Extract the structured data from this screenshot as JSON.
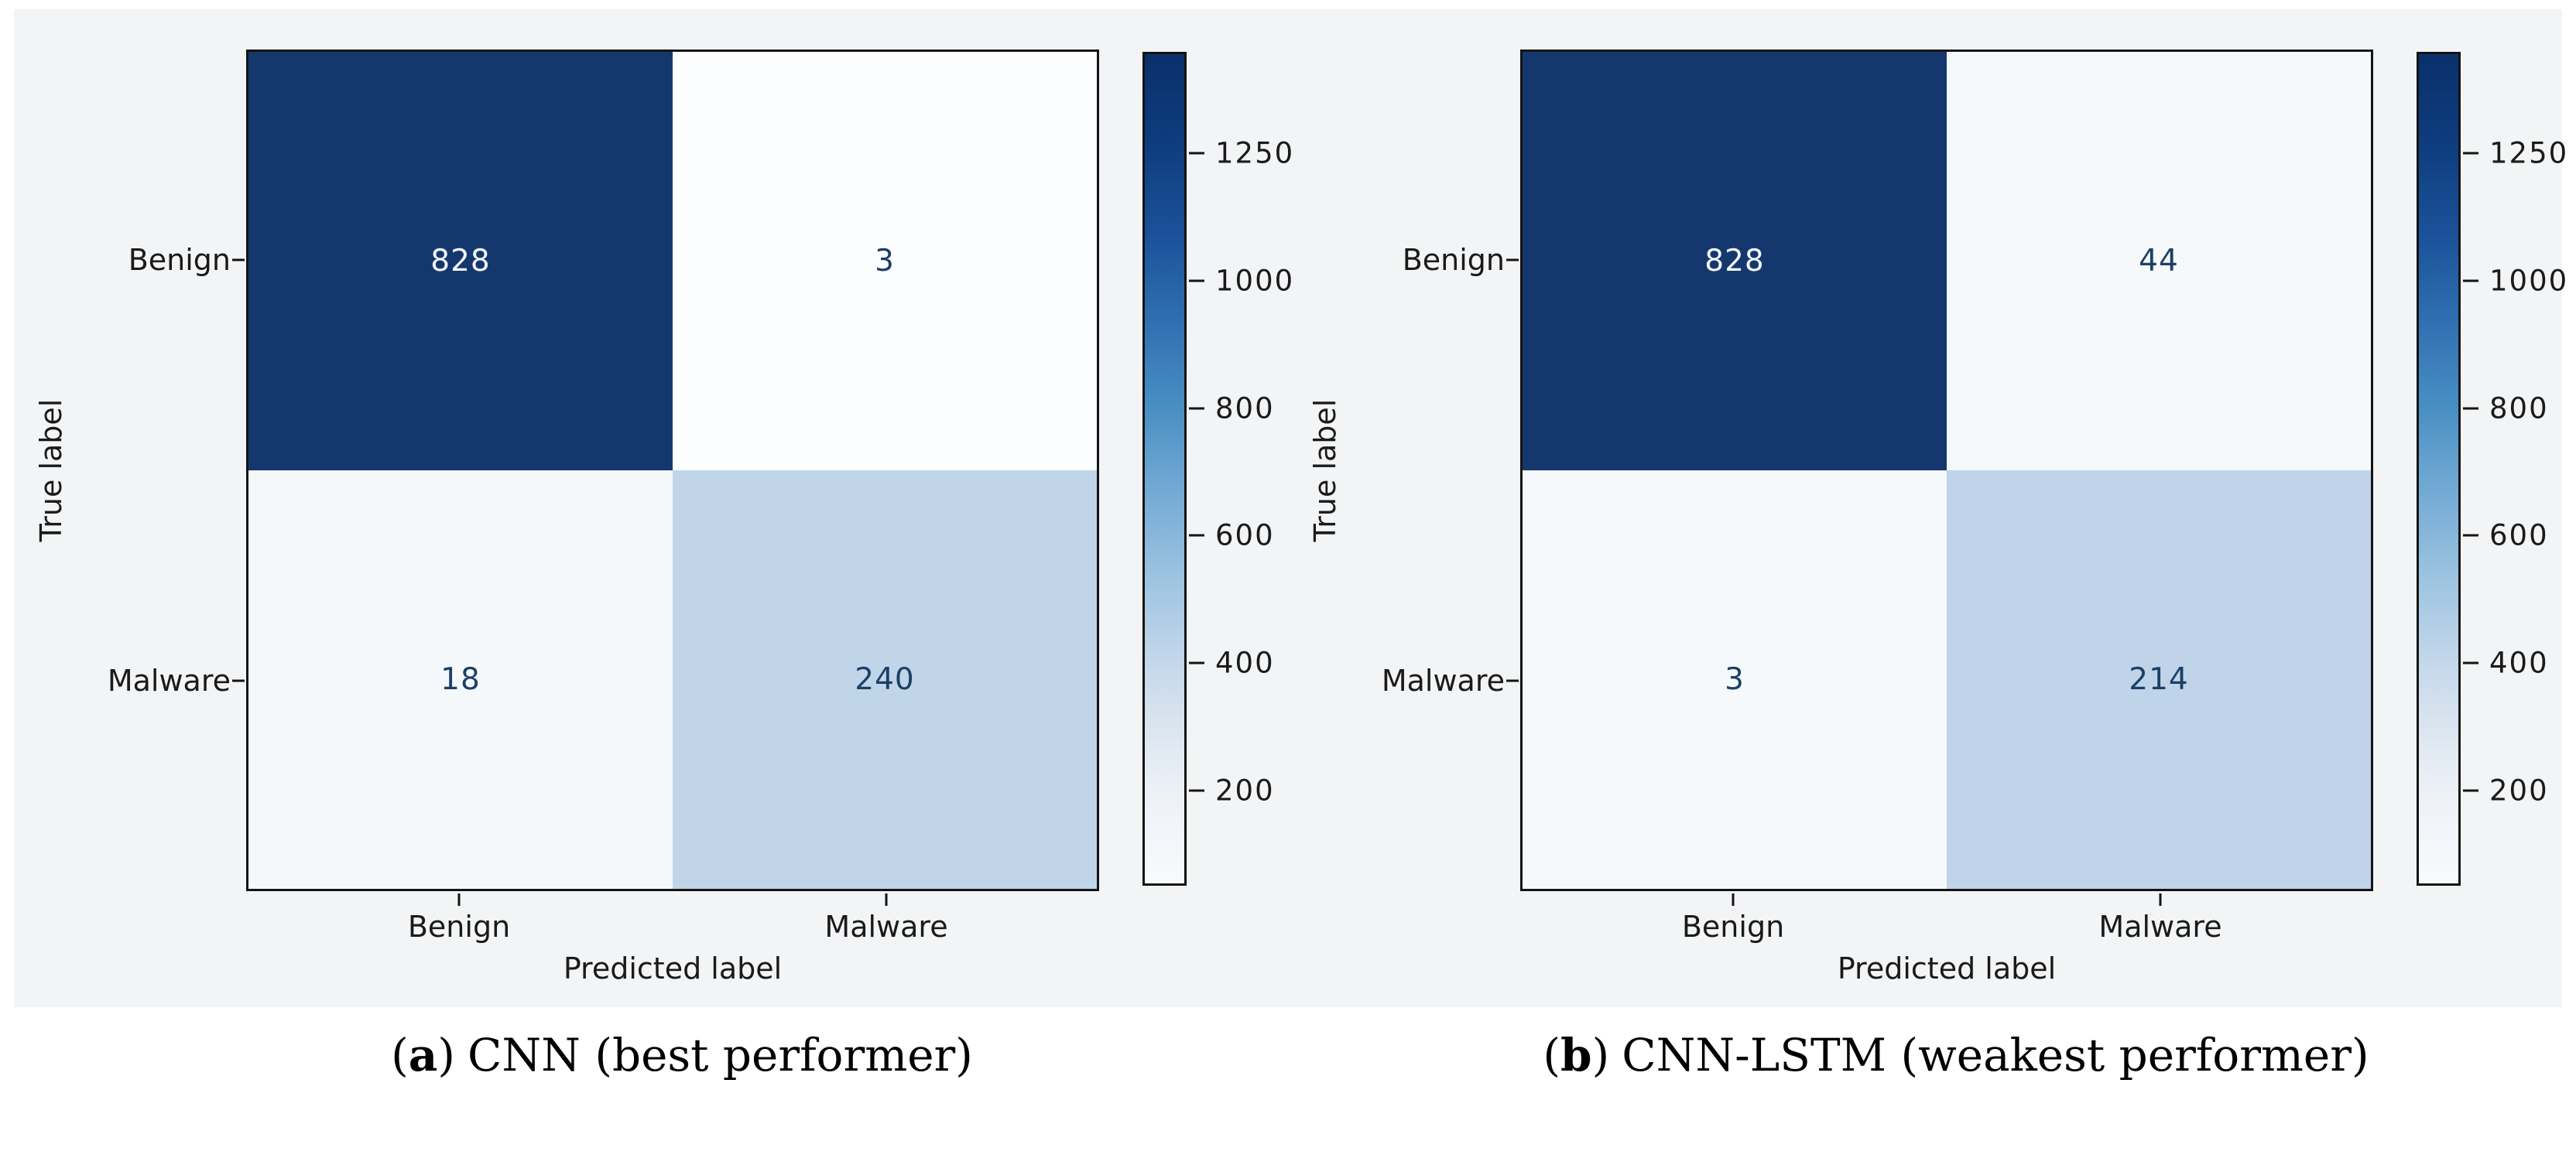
{
  "colors": {
    "heatmap_dark": "#14386e",
    "heatmap_light_blue": "#c0d5e8",
    "heatmap_near_white": "#f6f9fc",
    "heatmap_white": "#fcfdff",
    "value_text_dark": "#1b4066",
    "value_text_light": "#f5f8fc",
    "axis_ink": "#141414",
    "colorbar_top": "#0a306b",
    "colorbar_bottom": "#f8fafc"
  },
  "chart_data": [
    {
      "type": "heatmap",
      "panel_label": "a",
      "caption_open": "(",
      "caption_close": ")",
      "caption": "CNN (best performer)",
      "xlabel": "Predicted label",
      "ylabel": "True label",
      "x_categories": [
        "Benign",
        "Malware"
      ],
      "y_categories": [
        "Benign",
        "Malware"
      ],
      "matrix": [
        [
          828,
          3
        ],
        [
          18,
          240
        ]
      ],
      "colormap": "Blues",
      "legend_position": "right-colorbar",
      "grid": "off",
      "colorbar_ticks": [
        "1250",
        "1000",
        "800",
        "600",
        "400",
        "200"
      ],
      "cell_styles": [
        [
          {
            "bg": "#14386e",
            "fg": "#f5f8fc"
          },
          {
            "bg": "#fcfdff",
            "fg": "#1b4066"
          }
        ],
        [
          {
            "bg": "#f5f8fb",
            "fg": "#1b4066"
          },
          {
            "bg": "#c0d5e8",
            "fg": "#1b4066"
          }
        ]
      ]
    },
    {
      "type": "heatmap",
      "panel_label": "b",
      "caption_open": "(",
      "caption_close": ")",
      "caption": "CNN-LSTM (weakest performer)",
      "xlabel": "Predicted label",
      "ylabel": "True label",
      "x_categories": [
        "Benign",
        "Malware"
      ],
      "y_categories": [
        "Benign",
        "Malware"
      ],
      "matrix": [
        [
          828,
          44
        ],
        [
          3,
          214
        ]
      ],
      "colormap": "Blues",
      "legend_position": "right-colorbar",
      "grid": "off",
      "colorbar_ticks": [
        "1250",
        "1000",
        "800",
        "600",
        "400",
        "200"
      ],
      "cell_styles": [
        [
          {
            "bg": "#14386e",
            "fg": "#f5f8fc"
          },
          {
            "bg": "#f6f9fc",
            "fg": "#1b4066"
          }
        ],
        [
          {
            "bg": "#f6f9fc",
            "fg": "#1b4066"
          },
          {
            "bg": "#bfd4e8",
            "fg": "#1b4066"
          }
        ]
      ]
    }
  ]
}
